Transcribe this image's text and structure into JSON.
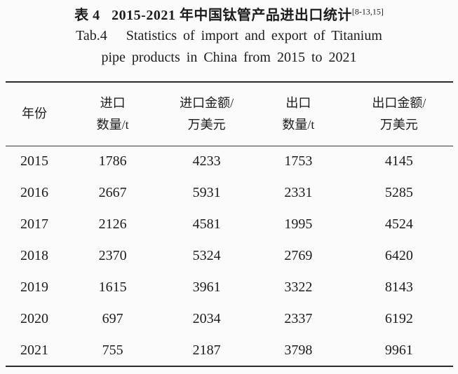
{
  "page": {
    "title_zh": "表 4   2015-2021 年中国钛管产品进出口统计",
    "title_citation": "[8-13,15]",
    "title_en_line1": "Tab.4   Statistics of import and export of Titanium",
    "title_en_line2": "pipe products in China from 2015 to 2021"
  },
  "table": {
    "headers": [
      {
        "line1": "年份",
        "line2": ""
      },
      {
        "line1": "进口",
        "line2": "数量/t"
      },
      {
        "line1": "进口金额/",
        "line2": "万美元"
      },
      {
        "line1": "出口",
        "line2": "数量/t"
      },
      {
        "line1": "出口金额/",
        "line2": "万美元"
      }
    ],
    "rows": [
      [
        "2015",
        "1786",
        "4233",
        "1753",
        "4145"
      ],
      [
        "2016",
        "2667",
        "5931",
        "2331",
        "5285"
      ],
      [
        "2017",
        "2126",
        "4581",
        "1995",
        "4524"
      ],
      [
        "2018",
        "2370",
        "5324",
        "2769",
        "6420"
      ],
      [
        "2019",
        "1615",
        "3961",
        "3322",
        "8143"
      ],
      [
        "2020",
        "697",
        "2034",
        "2337",
        "6192"
      ],
      [
        "2021",
        "755",
        "2187",
        "3798",
        "9961"
      ]
    ]
  }
}
